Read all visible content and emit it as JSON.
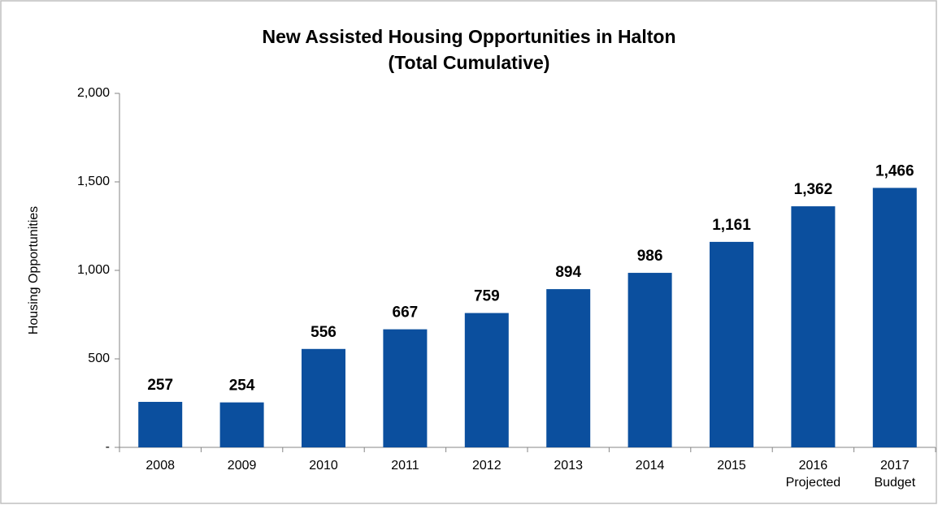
{
  "chart_data": {
    "type": "bar",
    "title": "New Assisted Housing Opportunities in Halton",
    "subtitle": "(Total Cumulative)",
    "y_label": "Housing Opportunities",
    "categories": [
      "2008",
      "2009",
      "2010",
      "2011",
      "2012",
      "2013",
      "2014",
      "2015",
      "2016 Projected",
      "2017 Budget"
    ],
    "values": [
      257,
      254,
      556,
      667,
      759,
      894,
      986,
      1161,
      1362,
      1466
    ],
    "value_labels": [
      "257",
      "254",
      "556",
      "667",
      "759",
      "894",
      "986",
      "1,161",
      "1,362",
      "1,466"
    ],
    "color": "#0b4f9e",
    "ylim": [
      0,
      2000
    ],
    "yticks": [
      {
        "value": 0,
        "label": "-"
      },
      500,
      {
        "value": 1000,
        "label": "1,000"
      },
      {
        "value": 1500,
        "label": "1,500"
      },
      {
        "value": 2000,
        "label": "2,000"
      }
    ],
    "grid": false
  }
}
